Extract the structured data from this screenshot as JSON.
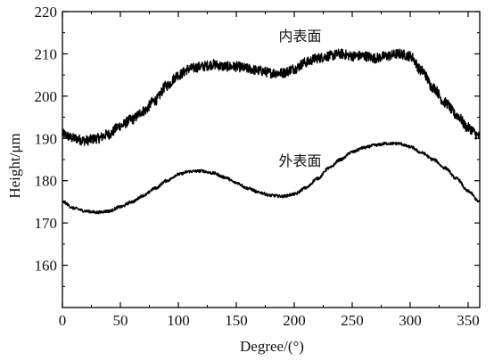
{
  "chart_data": {
    "type": "line",
    "xlabel": "Degree/(°)",
    "ylabel": "Height/μm",
    "xlim": [
      0,
      360
    ],
    "ylim": [
      150,
      220
    ],
    "x_ticks": [
      0,
      50,
      100,
      150,
      200,
      250,
      300,
      350
    ],
    "y_ticks": [
      160,
      170,
      180,
      190,
      200,
      210,
      220
    ],
    "grid": false,
    "line_color": "#000000",
    "series": [
      {
        "label_text": "内表面",
        "label_at": [
          205,
          213
        ],
        "noise": 1.2,
        "x": [
          0,
          10,
          20,
          30,
          40,
          50,
          60,
          70,
          80,
          90,
          100,
          110,
          120,
          130,
          140,
          150,
          160,
          170,
          180,
          190,
          200,
          210,
          220,
          230,
          240,
          250,
          260,
          270,
          280,
          290,
          300,
          310,
          320,
          330,
          340,
          350,
          360
        ],
        "y": [
          191,
          190,
          189.5,
          190,
          191,
          193,
          194.5,
          196.5,
          199,
          202.5,
          205,
          206.5,
          207,
          207.5,
          207,
          207,
          206.5,
          206,
          205.5,
          205.5,
          206.5,
          208,
          209,
          209.5,
          210,
          209.5,
          209.5,
          209,
          209.5,
          210,
          209.5,
          206,
          202,
          198.5,
          195.5,
          192.5,
          190.5
        ]
      },
      {
        "label_text": "外表面",
        "label_at": [
          205,
          183.5
        ],
        "noise": 0.35,
        "x": [
          0,
          10,
          20,
          30,
          40,
          50,
          60,
          70,
          80,
          90,
          100,
          110,
          120,
          130,
          140,
          150,
          160,
          170,
          180,
          190,
          200,
          210,
          220,
          230,
          240,
          250,
          260,
          270,
          280,
          290,
          300,
          310,
          320,
          330,
          340,
          350,
          360
        ],
        "y": [
          175,
          173.5,
          172.8,
          172.5,
          172.8,
          173.8,
          175,
          176.5,
          178.2,
          180,
          181.5,
          182.2,
          182.3,
          181.8,
          180.8,
          179.5,
          178.2,
          177.2,
          176.5,
          176.3,
          176.8,
          178.3,
          180.5,
          183,
          185,
          186.8,
          187.8,
          188.4,
          188.8,
          188.8,
          188,
          186.6,
          185,
          183,
          180.5,
          177.5,
          175
        ]
      }
    ]
  }
}
